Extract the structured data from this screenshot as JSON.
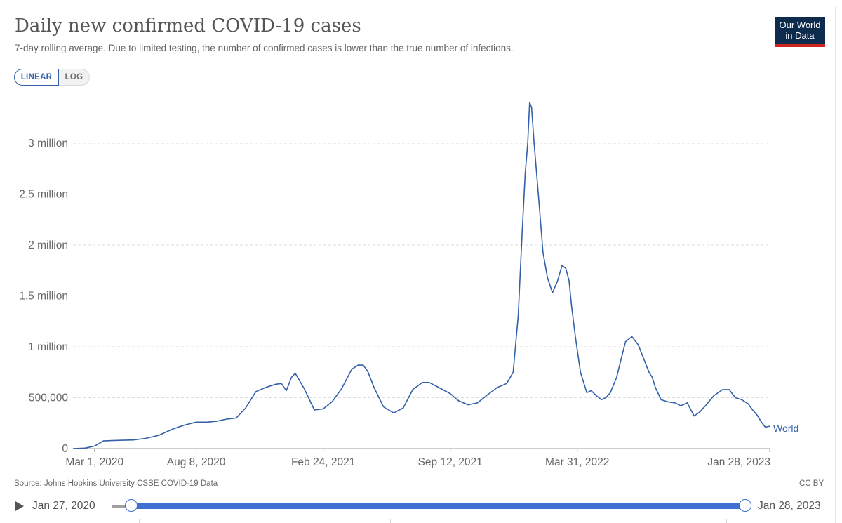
{
  "header": {
    "title": "Daily new confirmed COVID-19 cases",
    "subtitle": "7-day rolling average. Due to limited testing, the number of confirmed cases is lower than the true number of infections.",
    "logo_line1": "Our World",
    "logo_line2": "in Data"
  },
  "controls": {
    "linear_label": "LINEAR",
    "log_label": "LOG",
    "selected_scale": "linear"
  },
  "footer": {
    "source": "Source: Johns Hopkins University CSSE COVID-19 Data",
    "license": "CC BY"
  },
  "timeline": {
    "start_date": "Jan 27, 2020",
    "end_date": "Jan 28, 2023"
  },
  "colors": {
    "series": "#3360a9",
    "accent": "#3f6fd1",
    "logo_bg": "#0d2b4c",
    "logo_bar": "#ce261e"
  },
  "chart_data": {
    "type": "line",
    "title": "Daily new confirmed COVID-19 cases",
    "ylim": [
      0,
      3500000
    ],
    "y_ticks": [
      {
        "value": 0,
        "label": "0"
      },
      {
        "value": 500000,
        "label": "500,000"
      },
      {
        "value": 1000000,
        "label": "1 million"
      },
      {
        "value": 1500000,
        "label": "1.5 million"
      },
      {
        "value": 2000000,
        "label": "2 million"
      },
      {
        "value": 2500000,
        "label": "2.5 million"
      },
      {
        "value": 3000000,
        "label": "3 million"
      }
    ],
    "x_ticks": [
      "Mar 1, 2020",
      "Aug 8, 2020",
      "Feb 24, 2021",
      "Sep 12, 2021",
      "Mar 31, 2022",
      "Jan 28, 2023"
    ],
    "grid": "horizontal",
    "series": [
      {
        "name": "World",
        "x": [
          "2020-01-27",
          "2020-02-15",
          "2020-03-01",
          "2020-03-15",
          "2020-04-01",
          "2020-04-15",
          "2020-05-01",
          "2020-05-20",
          "2020-06-10",
          "2020-07-01",
          "2020-07-20",
          "2020-08-08",
          "2020-08-25",
          "2020-09-10",
          "2020-09-25",
          "2020-10-10",
          "2020-10-25",
          "2020-11-10",
          "2020-11-25",
          "2020-12-10",
          "2020-12-20",
          "2020-12-28",
          "2021-01-05",
          "2021-01-11",
          "2021-01-25",
          "2021-02-10",
          "2021-02-24",
          "2021-03-10",
          "2021-03-25",
          "2021-04-10",
          "2021-04-20",
          "2021-04-28",
          "2021-05-05",
          "2021-05-15",
          "2021-05-30",
          "2021-06-15",
          "2021-06-30",
          "2021-07-15",
          "2021-07-30",
          "2021-08-10",
          "2021-08-25",
          "2021-09-12",
          "2021-09-25",
          "2021-10-10",
          "2021-10-25",
          "2021-11-10",
          "2021-11-25",
          "2021-12-10",
          "2021-12-20",
          "2021-12-28",
          "2022-01-03",
          "2022-01-08",
          "2022-01-12",
          "2022-01-15",
          "2022-01-18",
          "2022-01-22",
          "2022-01-26",
          "2022-01-30",
          "2022-02-05",
          "2022-02-12",
          "2022-02-20",
          "2022-02-28",
          "2022-03-07",
          "2022-03-13",
          "2022-03-18",
          "2022-03-22",
          "2022-03-28",
          "2022-04-05",
          "2022-04-15",
          "2022-04-22",
          "2022-04-30",
          "2022-05-08",
          "2022-05-15",
          "2022-05-22",
          "2022-06-01",
          "2022-06-08",
          "2022-06-15",
          "2022-06-25",
          "2022-07-05",
          "2022-07-15",
          "2022-07-22",
          "2022-07-27",
          "2022-08-01",
          "2022-08-10",
          "2022-08-20",
          "2022-09-01",
          "2022-09-10",
          "2022-09-20",
          "2022-10-01",
          "2022-10-10",
          "2022-10-20",
          "2022-11-01",
          "2022-11-15",
          "2022-11-25",
          "2022-12-05",
          "2022-12-15",
          "2022-12-25",
          "2023-01-01",
          "2023-01-08",
          "2023-01-15",
          "2023-01-21",
          "2023-01-28"
        ],
        "values": [
          0,
          5000,
          25000,
          75000,
          80000,
          82000,
          85000,
          100000,
          130000,
          190000,
          230000,
          260000,
          260000,
          270000,
          290000,
          300000,
          400000,
          560000,
          600000,
          630000,
          640000,
          570000,
          700000,
          740000,
          590000,
          380000,
          390000,
          460000,
          590000,
          780000,
          820000,
          820000,
          760000,
          600000,
          410000,
          350000,
          400000,
          580000,
          650000,
          650000,
          600000,
          540000,
          470000,
          430000,
          450000,
          530000,
          600000,
          640000,
          750000,
          1300000,
          2100000,
          2700000,
          3000000,
          3400000,
          3350000,
          3000000,
          2700000,
          2400000,
          1930000,
          1680000,
          1530000,
          1650000,
          1800000,
          1770000,
          1650000,
          1400000,
          1100000,
          750000,
          550000,
          570000,
          520000,
          480000,
          500000,
          550000,
          700000,
          880000,
          1050000,
          1100000,
          1020000,
          860000,
          750000,
          700000,
          600000,
          480000,
          460000,
          450000,
          420000,
          450000,
          320000,
          360000,
          430000,
          520000,
          580000,
          580000,
          500000,
          480000,
          440000,
          380000,
          330000,
          260000,
          210000,
          220000
        ]
      }
    ]
  }
}
